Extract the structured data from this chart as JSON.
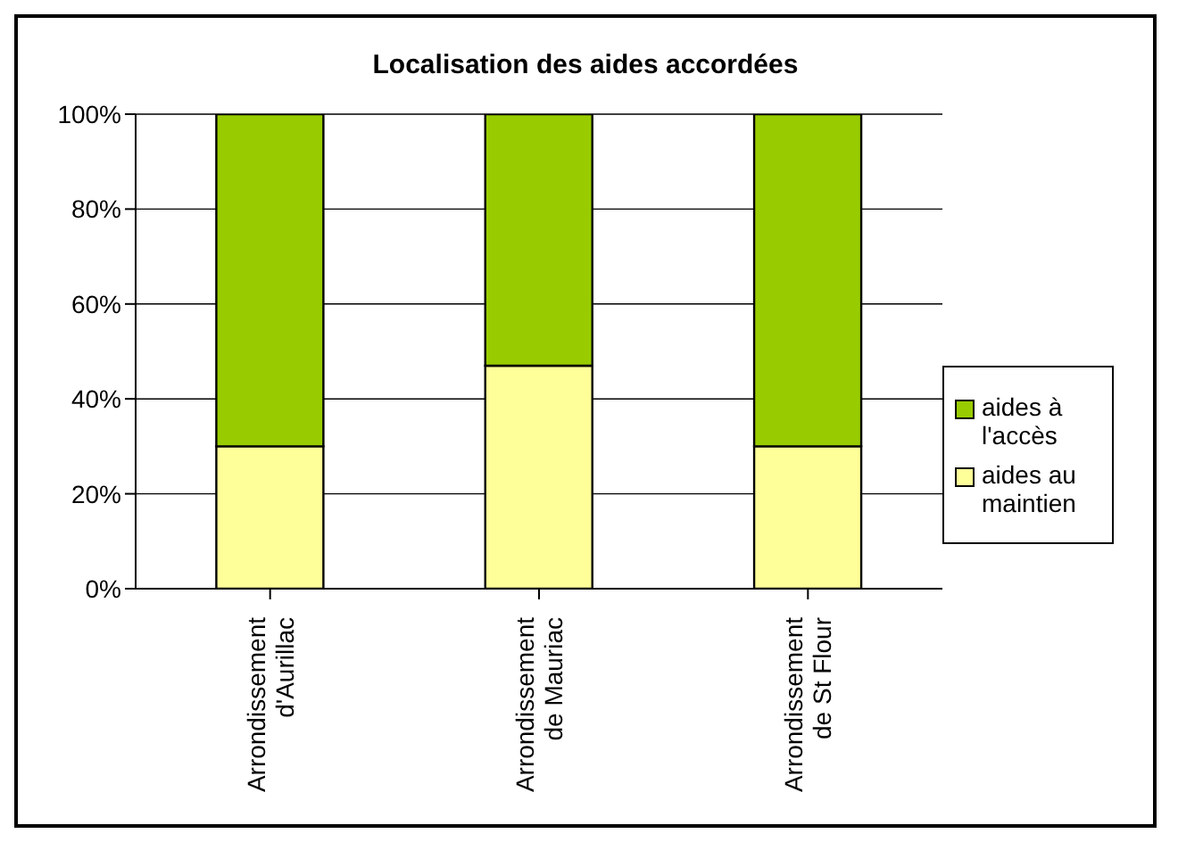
{
  "chart_data": {
    "type": "bar",
    "title": "Localisation des aides accordées",
    "categories": [
      "Arrondissement d'Aurillac",
      "Arrondissement de Mauriac",
      "Arrondissement de St Flour"
    ],
    "stacked": true,
    "series": [
      {
        "name": "aides au maintien",
        "color": "#ffff99",
        "values": [
          30,
          47,
          30
        ]
      },
      {
        "name": "aides à l'accès",
        "color": "#99cc00",
        "values": [
          70,
          53,
          70
        ]
      }
    ],
    "ylim": [
      0,
      100
    ],
    "yticks": [
      {
        "value": 0,
        "label": "0%"
      },
      {
        "value": 20,
        "label": "20%"
      },
      {
        "value": 40,
        "label": "40%"
      },
      {
        "value": 60,
        "label": "60%"
      },
      {
        "value": 80,
        "label": "80%"
      },
      {
        "value": 100,
        "label": "100%"
      }
    ],
    "grid": "y",
    "legend": "right"
  }
}
